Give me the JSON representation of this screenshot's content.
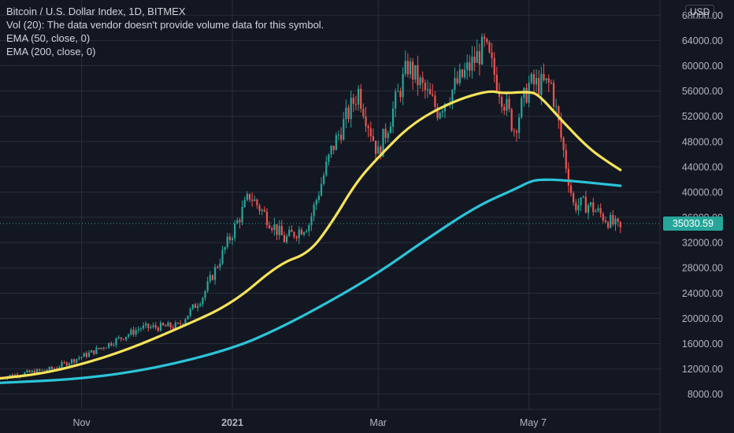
{
  "header": {
    "symbol_title": "Bitcoin / U.S. Dollar Index, 1D, BITMEX",
    "vol_line": "Vol (20): The data vendor doesn't provide volume data for this symbol.",
    "ema50_label": "EMA (50, close, 0)",
    "ema200_label": "EMA (200, close, 0)"
  },
  "currency_badge": "USD",
  "last_price_label": "35030.59",
  "colors": {
    "background": "#131722",
    "grid": "#2a2e39",
    "up_candle": "#26a69a",
    "down_candle": "#ef5350",
    "ema50": "#f7e35a",
    "ema200": "#2cc4d8",
    "axis_text": "#b2b5be"
  },
  "chart_data": {
    "type": "line",
    "title": "Bitcoin / U.S. Dollar Index, 1D, BITMEX",
    "y_scale": "linear",
    "ylim": [
      5600,
      70400
    ],
    "grid": true,
    "y_ticks": [
      "68000.00",
      "64000.00",
      "60000.00",
      "56000.00",
      "52000.00",
      "48000.00",
      "44000.00",
      "40000.00",
      "36000.00",
      "32000.00",
      "28000.00",
      "24000.00",
      "20000.00",
      "16000.00",
      "12000.00",
      "8000.00"
    ],
    "x_ticks": [
      "Nov",
      "2021",
      "Mar",
      "May",
      "7"
    ],
    "x_tick_dates": [
      "2020-11-01",
      "2021-01-01",
      "2021-03-01",
      "2021-05-01",
      "2021-05-07"
    ],
    "x_range": [
      "2020-09-29",
      "2021-06-23"
    ],
    "last_price": 35030.59,
    "series": [
      {
        "name": "EMA (50, close, 0)",
        "x": [
          "2020-09-29",
          "2020-10-15",
          "2020-11-01",
          "2020-11-20",
          "2020-12-10",
          "2021-01-01",
          "2021-01-20",
          "2021-02-01",
          "2021-02-10",
          "2021-02-20",
          "2021-03-01",
          "2021-03-15",
          "2021-04-01",
          "2021-04-15",
          "2021-04-20",
          "2021-05-01",
          "2021-05-05",
          "2021-05-15",
          "2021-05-25",
          "2021-06-01",
          "2021-06-07"
        ],
        "values": [
          10500,
          11200,
          12700,
          15100,
          18400,
          22300,
          28700,
          30300,
          35000,
          41500,
          45500,
          51000,
          54500,
          56100,
          55600,
          55900,
          55400,
          51000,
          47000,
          45000,
          43500
        ]
      },
      {
        "name": "EMA (200, close, 0)",
        "x": [
          "2020-09-29",
          "2020-11-01",
          "2020-12-01",
          "2021-01-01",
          "2021-01-20",
          "2021-02-10",
          "2021-03-01",
          "2021-03-20",
          "2021-04-10",
          "2021-04-25",
          "2021-05-01",
          "2021-05-05",
          "2021-05-15",
          "2021-06-07"
        ],
        "values": [
          9800,
          10400,
          12100,
          15200,
          18400,
          22800,
          27200,
          32400,
          37800,
          40400,
          41600,
          42000,
          41900,
          41000
        ]
      }
    ]
  }
}
